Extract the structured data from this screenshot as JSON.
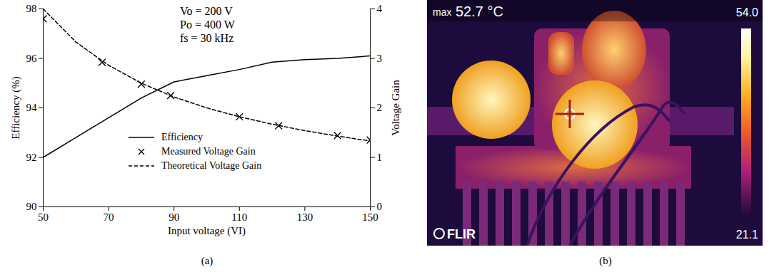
{
  "chart_data": {
    "type": "line",
    "caption": "(a)",
    "xlabel": "Input voltage (VI)",
    "ylabel": "Efficiency (%)",
    "y2label": "Voltage Gain",
    "annotations": [
      "Vo = 200 V",
      "Po = 400 W",
      "fs = 30 kHz"
    ],
    "xlim": [
      50,
      150
    ],
    "xticks": [
      50,
      70,
      90,
      110,
      130,
      150
    ],
    "ylim": [
      90,
      98
    ],
    "yticks": [
      90,
      92,
      94,
      96,
      98
    ],
    "y2lim": [
      0,
      4
    ],
    "y2ticks": [
      0,
      1,
      2,
      3,
      4
    ],
    "grid": false,
    "legend": "center",
    "series": [
      {
        "name": "Efficiency",
        "type": "line",
        "line_style": "solid",
        "color": "#000000",
        "x": [
          50,
          60,
          70,
          80,
          90,
          100,
          110,
          120,
          130,
          140,
          150
        ],
        "values": [
          92.0,
          92.8,
          93.6,
          94.4,
          95.05,
          95.3,
          95.55,
          95.85,
          95.95,
          96.0,
          96.1
        ]
      },
      {
        "name": "Measured Voltage Gain",
        "type": "scatter",
        "marker": "x",
        "color": "#000000",
        "axis": "y2",
        "x": [
          50,
          68,
          80,
          89,
          110,
          122,
          140,
          150
        ],
        "values": [
          3.8,
          2.92,
          2.48,
          2.25,
          1.82,
          1.64,
          1.44,
          1.35
        ]
      },
      {
        "name": "Theoretical Voltage Gain",
        "type": "line",
        "line_style": "dashed",
        "color": "#000000",
        "axis": "y2",
        "x": [
          50,
          60,
          70,
          80,
          90,
          100,
          110,
          120,
          130,
          140,
          150
        ],
        "values": [
          4.0,
          3.33,
          2.86,
          2.5,
          2.22,
          2.0,
          1.82,
          1.67,
          1.54,
          1.43,
          1.33
        ]
      }
    ]
  },
  "image_panel": {
    "caption": "(b)",
    "max_label": "max",
    "max_value": "52.7 °C",
    "scale_max": "54.0",
    "scale_min": "21.1",
    "brand": "FLIR"
  }
}
